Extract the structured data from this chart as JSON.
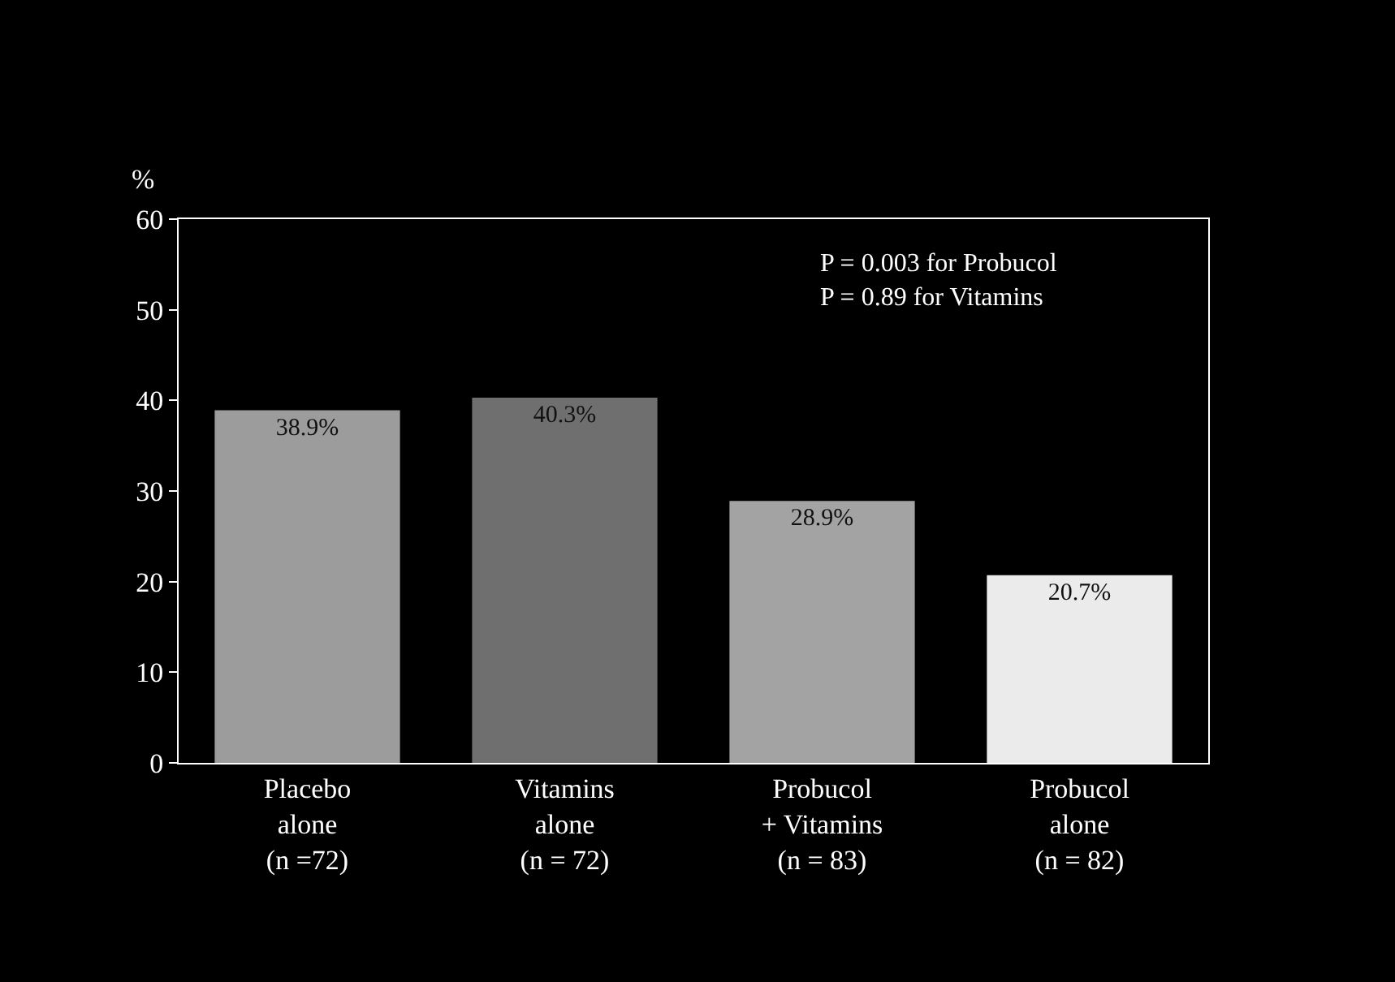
{
  "chart_data": {
    "type": "bar",
    "ylabel": "%",
    "categories": [
      "Placebo\nalone\n(n =72)",
      "Vitamins\nalone\n(n = 72)",
      "Probucol\n+ Vitamins\n(n = 83)",
      "Probucol\nalone\n(n = 82)"
    ],
    "values": [
      38.9,
      40.3,
      28.9,
      20.7
    ],
    "value_labels": [
      "38.9%",
      "40.3%",
      "28.9%",
      "20.7%"
    ],
    "colors": [
      "#9c9c9c",
      "#6f6f6f",
      "#a3a3a3",
      "#ebebeb"
    ],
    "ylim": [
      0,
      60
    ],
    "yticks": [
      0,
      10,
      20,
      30,
      40,
      50,
      60
    ],
    "annotations": [
      "P = 0.003 for Probucol\nP = 0.89 for Vitamins"
    ]
  }
}
